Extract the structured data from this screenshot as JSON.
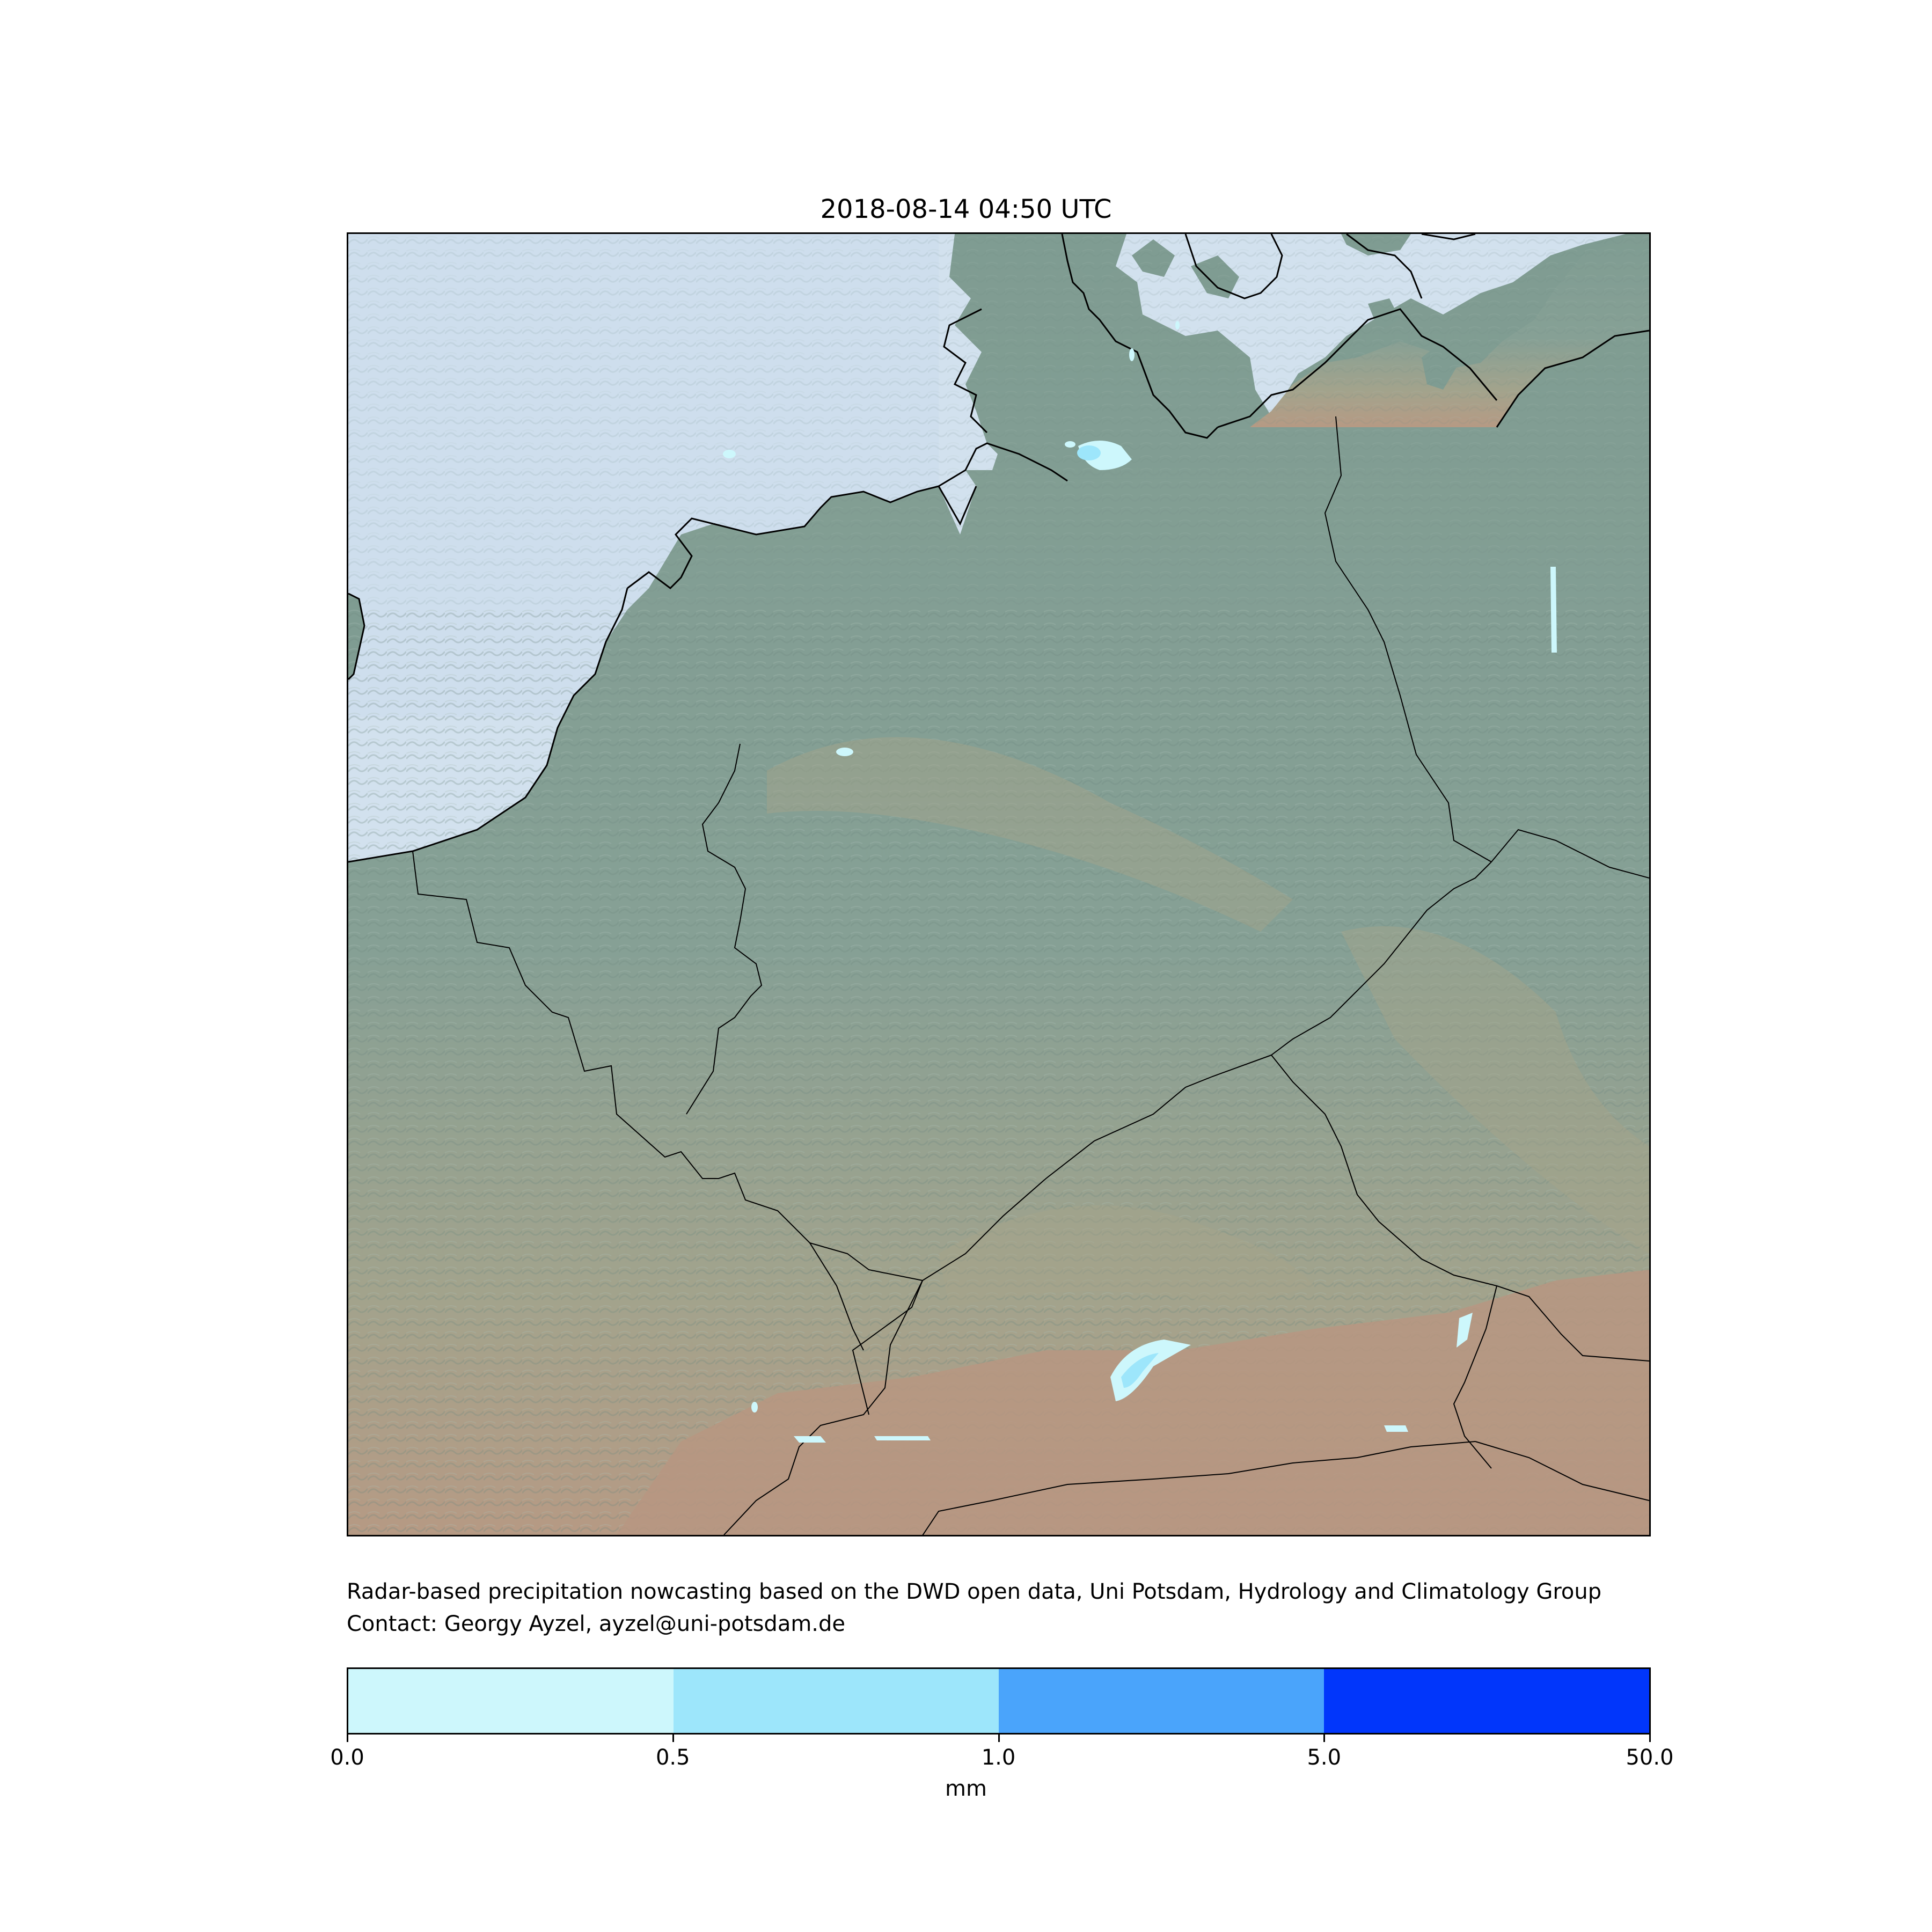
{
  "title": "2018-08-14 04:50 UTC",
  "map": {
    "colors": {
      "sea": "#d2e1ee",
      "land": "#7f9c92",
      "highland": "#a7a48a",
      "mountain": "#b99882",
      "border": "#000000",
      "precip_light": "#cdf7fc",
      "precip_medium": "#9de6fb"
    }
  },
  "credits": {
    "line1": "Radar-based precipitation nowcasting based on the DWD open data, Uni Potsdam, Hydrology and Climatology Group",
    "line2": "Contact: Georgy Ayzel, ayzel@uni-potsdam.de"
  },
  "colorbar": {
    "segments": [
      {
        "color": "#cdf7fc",
        "from": "0.0",
        "to": "0.5"
      },
      {
        "color": "#9de6fb",
        "from": "0.5",
        "to": "1.0"
      },
      {
        "color": "#4aa4fb",
        "from": "1.0",
        "to": "5.0"
      },
      {
        "color": "#0136fb",
        "from": "5.0",
        "to": "50.0"
      }
    ],
    "ticks": [
      "0.0",
      "0.5",
      "1.0",
      "5.0",
      "50.0"
    ],
    "label": "mm"
  }
}
